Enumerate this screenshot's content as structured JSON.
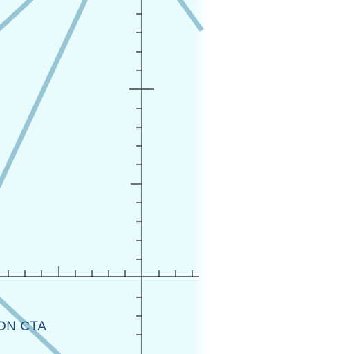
{
  "map": {
    "airspace_label": "ON CTA",
    "colors": {
      "water": "#e8fbfd",
      "airway": "#96c6d5",
      "grid": "#1a1a1a",
      "label": "#1c4a78",
      "background": "#ffffff"
    }
  }
}
